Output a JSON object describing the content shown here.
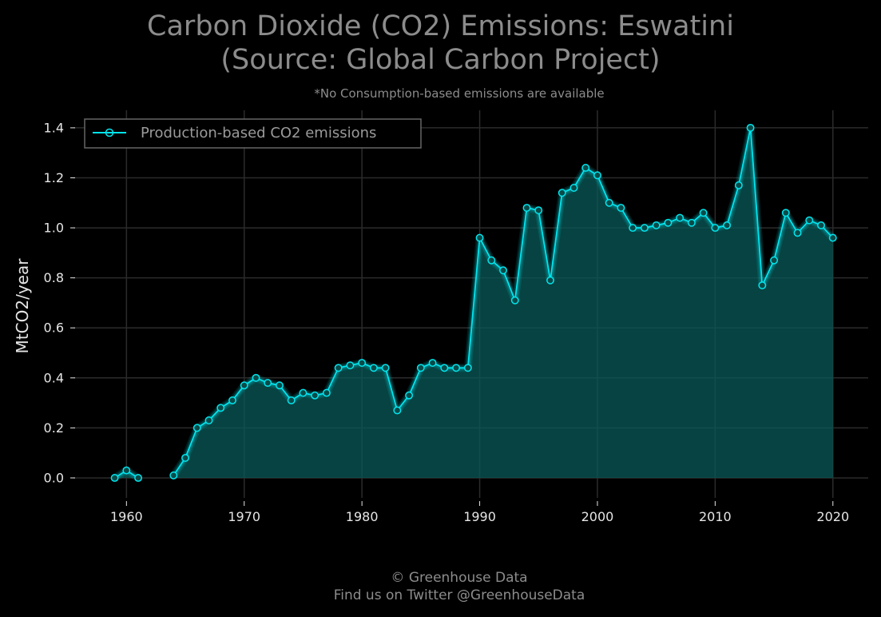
{
  "title_line1": "Carbon Dioxide (CO2) Emissions: Eswatini",
  "title_line2": "(Source: Global Carbon Project)",
  "subtitle": "*No Consumption-based emissions are available",
  "footer_line1": "© Greenhouse Data",
  "footer_line2": "Find us on Twitter @GreenhouseData",
  "colors": {
    "line": "#00e5ee",
    "fill": "#0a5a58",
    "grid": "#2b2b2b",
    "legend_border": "#666666"
  },
  "chart_data": {
    "type": "line",
    "ylabel": "MtCO2/year",
    "xlim": [
      1955.5,
      2023
    ],
    "ylim": [
      -0.08,
      1.47
    ],
    "x_ticks": [
      1960,
      1970,
      1980,
      1990,
      2000,
      2010,
      2020
    ],
    "y_ticks": [
      0.0,
      0.2,
      0.4,
      0.6,
      0.8,
      1.0,
      1.2,
      1.4
    ],
    "y_tick_labels": [
      "0.0",
      "0.2",
      "0.4",
      "0.6",
      "0.8",
      "1.0",
      "1.2",
      "1.4"
    ],
    "grid": true,
    "legend_position": "top-left",
    "series": [
      {
        "name": "Production-based CO2 emissions",
        "segments": [
          {
            "x": [
              1959,
              1960,
              1961
            ],
            "y": [
              0.0,
              0.03,
              0.0
            ]
          },
          {
            "x": [
              1964,
              1965,
              1966,
              1967,
              1968,
              1969,
              1970,
              1971,
              1972,
              1973,
              1974,
              1975,
              1976,
              1977,
              1978,
              1979,
              1980,
              1981,
              1982,
              1983,
              1984,
              1985,
              1986,
              1987,
              1988,
              1989,
              1990,
              1991,
              1992,
              1993,
              1994,
              1995,
              1996,
              1997,
              1998,
              1999,
              2000,
              2001,
              2002,
              2003,
              2004,
              2005,
              2006,
              2007,
              2008,
              2009,
              2010,
              2011,
              2012,
              2013,
              2014,
              2015,
              2016,
              2017,
              2018,
              2019,
              2020
            ],
            "y": [
              0.01,
              0.08,
              0.2,
              0.23,
              0.28,
              0.31,
              0.37,
              0.4,
              0.38,
              0.37,
              0.31,
              0.34,
              0.33,
              0.34,
              0.44,
              0.45,
              0.46,
              0.44,
              0.44,
              0.27,
              0.33,
              0.44,
              0.46,
              0.44,
              0.44,
              0.44,
              0.96,
              0.87,
              0.83,
              0.71,
              1.08,
              1.07,
              0.79,
              1.14,
              1.16,
              1.24,
              1.21,
              1.1,
              1.08,
              1.0,
              1.0,
              1.01,
              1.02,
              1.04,
              1.02,
              1.06,
              1.0,
              1.01,
              1.17,
              1.4,
              0.77,
              0.87,
              1.06,
              0.98,
              1.03,
              1.01,
              0.96
            ]
          }
        ]
      }
    ]
  }
}
